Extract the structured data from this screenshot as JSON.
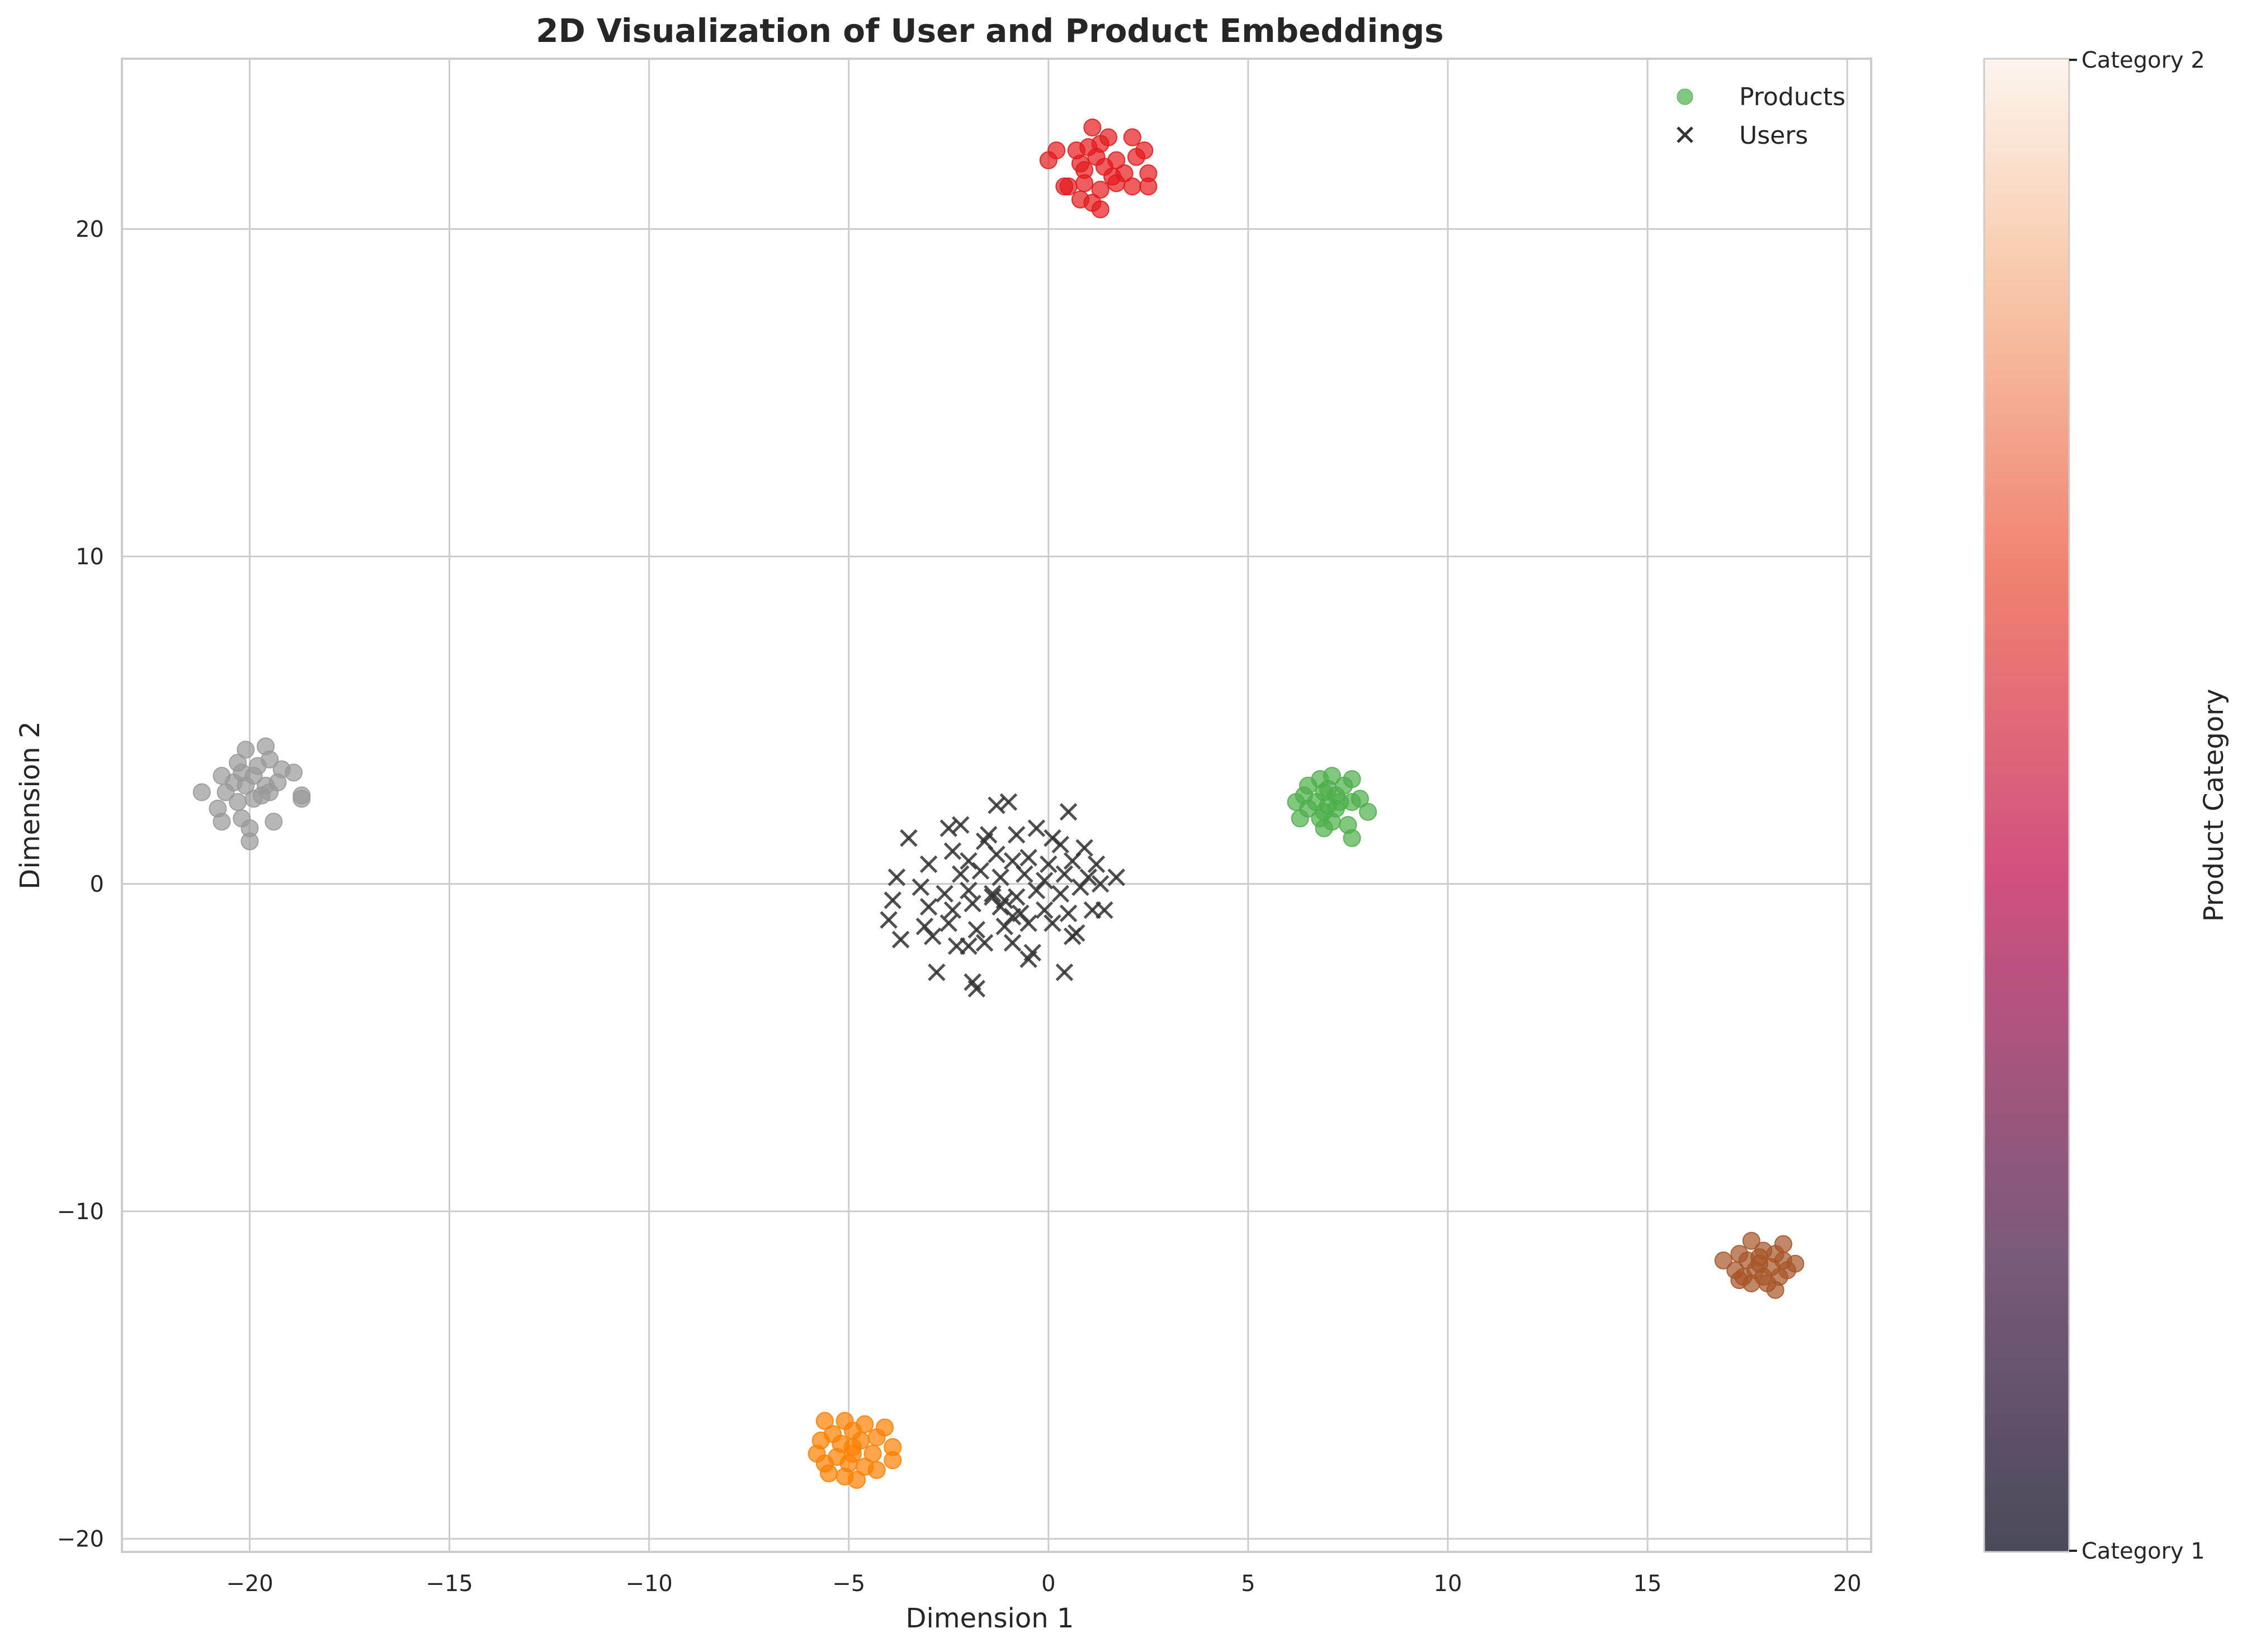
{
  "chart_data": {
    "type": "scatter",
    "title": "2D Visualization of User and Product Embeddings",
    "xlabel": "Dimension 1",
    "ylabel": "Dimension 2",
    "xlim": [
      -23.2,
      20.6
    ],
    "ylim": [
      -20.4,
      25.2
    ],
    "xticks": [
      -20,
      -15,
      -10,
      -5,
      0,
      5,
      10,
      15,
      20
    ],
    "yticks": [
      -20,
      -10,
      0,
      10,
      20
    ],
    "grid": true,
    "legend_position": "top-right",
    "legend": [
      {
        "label": "Products",
        "marker": "circle",
        "color": "#4daf4a"
      },
      {
        "label": "Users",
        "marker": "x",
        "color": "#333333"
      }
    ],
    "colorbar": {
      "label": "Product Category",
      "tick_labels": [
        "Category 1",
        "Category 2"
      ],
      "colors": [
        "#4a4a5a",
        "#7a5a7a",
        "#d05080",
        "#f08070",
        "#f8c8a8",
        "#fdf5ee"
      ]
    },
    "series": [
      {
        "name": "Products",
        "marker": "circle",
        "color_note": "colored by category cluster",
        "clusters": [
          {
            "color": "#e41a1c",
            "points": [
              [
                1.1,
                23.1
              ],
              [
                1.5,
                22.8
              ],
              [
                2.1,
                22.8
              ],
              [
                0.2,
                22.4
              ],
              [
                0.7,
                22.4
              ],
              [
                1.3,
                22.6
              ],
              [
                2.4,
                22.4
              ],
              [
                0.0,
                22.1
              ],
              [
                0.8,
                22.0
              ],
              [
                1.2,
                22.2
              ],
              [
                1.7,
                22.1
              ],
              [
                2.2,
                22.2
              ],
              [
                0.9,
                21.8
              ],
              [
                1.4,
                21.9
              ],
              [
                1.9,
                21.7
              ],
              [
                2.5,
                21.7
              ],
              [
                0.4,
                21.3
              ],
              [
                0.9,
                21.4
              ],
              [
                1.3,
                21.2
              ],
              [
                1.7,
                21.4
              ],
              [
                2.1,
                21.3
              ],
              [
                2.5,
                21.3
              ],
              [
                0.8,
                20.9
              ],
              [
                1.1,
                20.8
              ],
              [
                1.3,
                20.6
              ],
              [
                0.5,
                21.3
              ],
              [
                1.6,
                21.6
              ],
              [
                1.0,
                22.5
              ]
            ]
          },
          {
            "color": "#4daf4a",
            "points": [
              [
                7.1,
                3.3
              ],
              [
                6.8,
                3.2
              ],
              [
                7.4,
                3.0
              ],
              [
                7.6,
                3.2
              ],
              [
                6.5,
                3.0
              ],
              [
                6.4,
                2.7
              ],
              [
                6.9,
                2.8
              ],
              [
                7.2,
                2.7
              ],
              [
                7.8,
                2.6
              ],
              [
                6.2,
                2.5
              ],
              [
                6.7,
                2.5
              ],
              [
                7.0,
                2.4
              ],
              [
                7.3,
                2.5
              ],
              [
                7.6,
                2.5
              ],
              [
                6.5,
                2.3
              ],
              [
                6.9,
                2.2
              ],
              [
                7.2,
                2.3
              ],
              [
                8.0,
                2.2
              ],
              [
                6.3,
                2.0
              ],
              [
                6.8,
                2.0
              ],
              [
                7.1,
                1.9
              ],
              [
                7.5,
                1.8
              ],
              [
                6.9,
                1.7
              ],
              [
                7.6,
                1.4
              ],
              [
                7.0,
                2.9
              ]
            ]
          },
          {
            "color": "#999999",
            "points": [
              [
                -20.1,
                4.1
              ],
              [
                -19.6,
                4.2
              ],
              [
                -20.3,
                3.7
              ],
              [
                -19.8,
                3.6
              ],
              [
                -19.5,
                3.8
              ],
              [
                -20.7,
                3.3
              ],
              [
                -20.2,
                3.4
              ],
              [
                -19.9,
                3.3
              ],
              [
                -19.2,
                3.5
              ],
              [
                -18.9,
                3.4
              ],
              [
                -21.2,
                2.8
              ],
              [
                -20.6,
                2.8
              ],
              [
                -20.1,
                3.0
              ],
              [
                -19.6,
                3.0
              ],
              [
                -19.3,
                3.1
              ],
              [
                -18.7,
                2.7
              ],
              [
                -20.8,
                2.3
              ],
              [
                -20.3,
                2.5
              ],
              [
                -19.9,
                2.6
              ],
              [
                -19.5,
                2.8
              ],
              [
                -18.7,
                2.6
              ],
              [
                -20.7,
                1.9
              ],
              [
                -20.2,
                2.0
              ],
              [
                -19.4,
                1.9
              ],
              [
                -20.0,
                1.7
              ],
              [
                -20.0,
                1.3
              ],
              [
                -19.7,
                2.7
              ],
              [
                -20.4,
                3.1
              ]
            ]
          },
          {
            "color": "#ff7f00",
            "points": [
              [
                -5.6,
                -16.4
              ],
              [
                -5.1,
                -16.4
              ],
              [
                -4.6,
                -16.5
              ],
              [
                -4.1,
                -16.6
              ],
              [
                -5.4,
                -16.8
              ],
              [
                -4.9,
                -16.7
              ],
              [
                -4.3,
                -16.9
              ],
              [
                -5.7,
                -17.0
              ],
              [
                -5.2,
                -17.1
              ],
              [
                -4.7,
                -17.0
              ],
              [
                -3.9,
                -17.2
              ],
              [
                -5.8,
                -17.4
              ],
              [
                -5.3,
                -17.5
              ],
              [
                -4.9,
                -17.4
              ],
              [
                -4.4,
                -17.4
              ],
              [
                -3.9,
                -17.6
              ],
              [
                -5.6,
                -17.7
              ],
              [
                -5.0,
                -17.7
              ],
              [
                -4.6,
                -17.8
              ],
              [
                -5.5,
                -18.0
              ],
              [
                -5.1,
                -18.1
              ],
              [
                -4.8,
                -18.2
              ],
              [
                -4.3,
                -17.9
              ],
              [
                -4.9,
                -17.2
              ]
            ]
          },
          {
            "color": "#a65628",
            "points": [
              [
                17.6,
                -10.9
              ],
              [
                18.4,
                -11.0
              ],
              [
                17.3,
                -11.3
              ],
              [
                17.9,
                -11.2
              ],
              [
                18.2,
                -11.3
              ],
              [
                16.9,
                -11.5
              ],
              [
                17.5,
                -11.5
              ],
              [
                17.8,
                -11.6
              ],
              [
                18.4,
                -11.5
              ],
              [
                18.7,
                -11.6
              ],
              [
                17.2,
                -11.8
              ],
              [
                17.7,
                -11.8
              ],
              [
                18.1,
                -11.7
              ],
              [
                18.5,
                -11.8
              ],
              [
                17.4,
                -12.0
              ],
              [
                17.9,
                -12.0
              ],
              [
                18.3,
                -12.0
              ],
              [
                17.6,
                -12.2
              ],
              [
                18.0,
                -12.2
              ],
              [
                18.2,
                -12.4
              ],
              [
                17.3,
                -12.1
              ],
              [
                17.8,
                -11.4
              ]
            ]
          }
        ]
      },
      {
        "name": "Users",
        "marker": "x",
        "color": "#333333",
        "points": [
          [
            -1.3,
            2.4
          ],
          [
            -1.0,
            2.5
          ],
          [
            0.5,
            2.2
          ],
          [
            -3.5,
            1.4
          ],
          [
            -2.5,
            1.7
          ],
          [
            -2.2,
            1.8
          ],
          [
            -1.5,
            1.5
          ],
          [
            -1.6,
            1.3
          ],
          [
            -0.8,
            1.5
          ],
          [
            -0.3,
            1.7
          ],
          [
            0.1,
            1.4
          ],
          [
            0.3,
            1.2
          ],
          [
            0.9,
            1.1
          ],
          [
            -2.4,
            1.0
          ],
          [
            -2.0,
            0.7
          ],
          [
            -1.3,
            0.9
          ],
          [
            -0.9,
            0.7
          ],
          [
            -0.5,
            0.8
          ],
          [
            0.0,
            0.6
          ],
          [
            0.6,
            0.7
          ],
          [
            1.2,
            0.6
          ],
          [
            -3.0,
            0.6
          ],
          [
            -2.2,
            0.3
          ],
          [
            -1.7,
            0.4
          ],
          [
            -1.2,
            0.2
          ],
          [
            -0.6,
            0.3
          ],
          [
            -0.1,
            0.1
          ],
          [
            0.4,
            0.3
          ],
          [
            1.0,
            0.2
          ],
          [
            1.7,
            0.2
          ],
          [
            -3.8,
            0.2
          ],
          [
            -3.2,
            -0.1
          ],
          [
            -2.6,
            -0.3
          ],
          [
            -2.0,
            -0.2
          ],
          [
            -1.4,
            -0.3
          ],
          [
            -0.8,
            -0.4
          ],
          [
            -0.3,
            -0.2
          ],
          [
            0.3,
            -0.3
          ],
          [
            0.8,
            -0.1
          ],
          [
            1.3,
            0.0
          ],
          [
            -3.9,
            -0.5
          ],
          [
            -3.0,
            -0.7
          ],
          [
            -2.4,
            -0.8
          ],
          [
            -1.9,
            -0.6
          ],
          [
            -1.2,
            -0.7
          ],
          [
            -0.7,
            -0.9
          ],
          [
            -0.1,
            -0.8
          ],
          [
            0.5,
            -0.9
          ],
          [
            1.1,
            -0.8
          ],
          [
            1.4,
            -0.8
          ],
          [
            -4.0,
            -1.1
          ],
          [
            -3.1,
            -1.3
          ],
          [
            -2.5,
            -1.2
          ],
          [
            -1.8,
            -1.4
          ],
          [
            -1.1,
            -1.3
          ],
          [
            -0.5,
            -1.2
          ],
          [
            0.1,
            -1.2
          ],
          [
            0.7,
            -1.5
          ],
          [
            -3.7,
            -1.7
          ],
          [
            -2.9,
            -1.6
          ],
          [
            -2.3,
            -1.9
          ],
          [
            -1.6,
            -1.8
          ],
          [
            -0.9,
            -1.8
          ],
          [
            -0.4,
            -2.1
          ],
          [
            0.6,
            -1.6
          ],
          [
            -2.0,
            -1.9
          ],
          [
            -0.5,
            -2.3
          ],
          [
            -2.8,
            -2.7
          ],
          [
            0.4,
            -2.7
          ],
          [
            -1.9,
            -3.0
          ],
          [
            -1.8,
            -3.2
          ],
          [
            -1.1,
            -0.5
          ],
          [
            -1.4,
            -0.4
          ],
          [
            -0.9,
            -1.0
          ]
        ]
      }
    ]
  }
}
